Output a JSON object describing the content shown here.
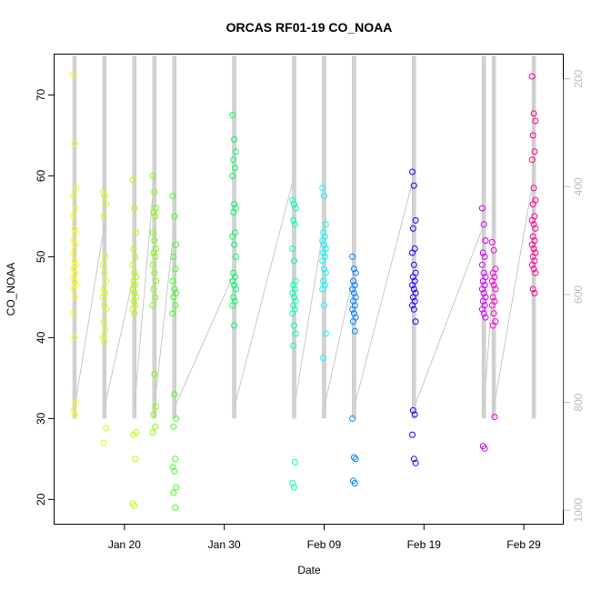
{
  "chart_data": {
    "type": "scatter",
    "title": "ORCAS RF01-19 CO_NOAA",
    "xlabel": "Date",
    "ylabel": "CO_NOAA",
    "xlim": [
      "2016-01-13",
      "2016-03-04"
    ],
    "ylim": [
      17,
      75
    ],
    "x_ticks": [
      {
        "date": "2016-01-20",
        "label": "Jan 20"
      },
      {
        "date": "2016-01-30",
        "label": "Jan 30"
      },
      {
        "date": "2016-02-09",
        "label": "Feb 09"
      },
      {
        "date": "2016-02-19",
        "label": "Feb 19"
      },
      {
        "date": "2016-02-29",
        "label": "Feb 29"
      }
    ],
    "y_ticks": [
      20,
      30,
      40,
      50,
      60,
      70
    ],
    "right_axis": {
      "ylim": [
        1025,
        155
      ],
      "reversed": true,
      "ticks": [
        200,
        400,
        600,
        800,
        1000
      ],
      "color": "#bdbdbd",
      "description": "secondary pressure axis (altitude trace in gray)"
    },
    "grid": false,
    "series": [
      {
        "date": "2016-01-15",
        "color": "#ffff00",
        "values": [
          72.5,
          64,
          58.5,
          57.5,
          56,
          55,
          53.5,
          53,
          52,
          51.5,
          50.5,
          49.5,
          49,
          48.5,
          48,
          47.5,
          47,
          46.5,
          46,
          45,
          43,
          40,
          32,
          31,
          30.5
        ]
      },
      {
        "date": "2016-01-18",
        "color": "#d9ff00",
        "values": [
          58,
          57.5,
          56.5,
          55,
          50,
          49,
          48,
          47,
          46,
          45.5,
          45,
          44,
          43.5,
          42,
          41,
          40,
          39.5,
          28.8,
          27
        ]
      },
      {
        "date": "2016-01-21",
        "color": "#b3ff00",
        "values": [
          59.5,
          56,
          53,
          51,
          50,
          49,
          48,
          47.5,
          47,
          46.5,
          46,
          45.5,
          45,
          44.5,
          44,
          43.5,
          43,
          28.3,
          28,
          25,
          19.5,
          19.2
        ]
      },
      {
        "date": "2016-01-23",
        "color": "#80ff00",
        "values": [
          60,
          58,
          56,
          55.5,
          55,
          53,
          52,
          51,
          50.5,
          50,
          49,
          48,
          47,
          46,
          45,
          44,
          35.5,
          31.5,
          30.5,
          29,
          28.3
        ]
      },
      {
        "date": "2016-01-25",
        "color": "#40ff20",
        "values": [
          57.5,
          55,
          51.5,
          50,
          48.5,
          47,
          46,
          45.5,
          45,
          44,
          43,
          33,
          30,
          29,
          25,
          24,
          23.5,
          21.5,
          20.8,
          19
        ]
      },
      {
        "date": "2016-01-31",
        "color": "#00ff66",
        "values": [
          67.5,
          64.5,
          63,
          62,
          61,
          60,
          56.5,
          56,
          55.5,
          53,
          52.5,
          51.5,
          50,
          48,
          47.5,
          47,
          46.5,
          46,
          45,
          44.5,
          44,
          41.5
        ]
      },
      {
        "date": "2016-02-06",
        "color": "#00ffbb",
        "values": [
          57,
          56.5,
          56,
          54.5,
          54,
          51,
          49.5,
          47,
          46.5,
          46,
          45.5,
          45,
          44.5,
          44,
          43.5,
          43,
          41.5,
          40.5,
          39,
          24.6,
          22,
          21.5
        ]
      },
      {
        "date": "2016-02-09",
        "color": "#00ffff",
        "values": [
          58.5,
          57.5,
          54,
          53,
          52.5,
          52,
          51.5,
          51,
          50.5,
          50,
          49.5,
          48.5,
          48,
          47,
          46.5,
          46,
          44,
          40.5,
          37.5
        ]
      },
      {
        "date": "2016-02-12",
        "color": "#0088ff",
        "values": [
          50,
          48.5,
          48,
          47,
          46.5,
          46,
          45.5,
          45,
          44.5,
          44,
          43.5,
          43,
          42.5,
          42,
          40.8,
          30,
          25.2,
          25,
          22.3,
          22
        ]
      },
      {
        "date": "2016-02-18",
        "color": "#2200ff",
        "values": [
          60.5,
          58.8,
          54.5,
          53.5,
          51,
          50.5,
          49,
          48,
          47.5,
          47,
          46.5,
          46,
          45.5,
          45,
          44.5,
          44,
          43.5,
          42,
          31,
          30.5,
          28,
          25,
          24.5
        ]
      },
      {
        "date": "2016-02-25",
        "color": "#cc00ff",
        "values": [
          56,
          54,
          52,
          50.5,
          50,
          49,
          48,
          47.5,
          47,
          46.5,
          46,
          45.5,
          45,
          44.5,
          44,
          43.5,
          43,
          42.5,
          26.6,
          26.3
        ]
      },
      {
        "date": "2016-02-26",
        "color": "#ff00dd",
        "values": [
          51.8,
          50.8,
          48.5,
          48,
          47.5,
          47,
          46.5,
          46,
          45,
          44.5,
          44,
          43,
          42,
          41.5,
          30.2
        ]
      },
      {
        "date": "2016-03-01",
        "color": "#ff0099",
        "values": [
          72.3,
          67.7,
          66.8,
          65,
          63,
          62,
          58.5,
          57,
          56.5,
          55,
          54.5,
          54,
          53.5,
          52.5,
          52,
          51.5,
          51,
          50.5,
          50,
          49.5,
          49,
          48.5,
          48,
          46,
          45.5
        ]
      }
    ]
  }
}
